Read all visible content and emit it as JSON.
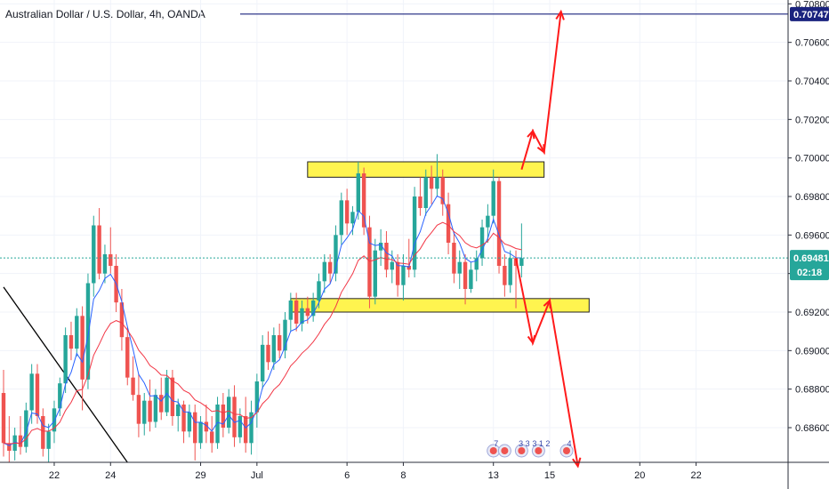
{
  "chart_data": {
    "type": "candlestick",
    "title": "Australian Dollar / U.S. Dollar, 4h, OANDA",
    "ylim": [
      0.6842,
      0.7082
    ],
    "y_ticks": [
      "0.70800",
      "0.70600",
      "0.70400",
      "0.70200",
      "0.70000",
      "0.69800",
      "0.69600",
      "0.69400",
      "0.69200",
      "0.69000",
      "0.68800",
      "0.68600"
    ],
    "x_ticks": [
      {
        "label": "22",
        "bar": 9
      },
      {
        "label": "24",
        "bar": 19
      },
      {
        "label": "29",
        "bar": 35
      },
      {
        "label": "Jul",
        "bar": 45
      },
      {
        "label": "6",
        "bar": 61
      },
      {
        "label": "8",
        "bar": 71
      },
      {
        "label": "13",
        "bar": 87
      },
      {
        "label": "15",
        "bar": 97
      },
      {
        "label": "20",
        "bar": 113
      },
      {
        "label": "22",
        "bar": 123
      }
    ],
    "candles": [
      [
        0.6878,
        0.689,
        0.6845,
        0.6852
      ],
      [
        0.6852,
        0.6866,
        0.6842,
        0.6848
      ],
      [
        0.6848,
        0.686,
        0.6843,
        0.6856
      ],
      [
        0.6856,
        0.6866,
        0.6846,
        0.685
      ],
      [
        0.685,
        0.6873,
        0.6847,
        0.6869
      ],
      [
        0.6869,
        0.6893,
        0.6862,
        0.6888
      ],
      [
        0.6888,
        0.6893,
        0.6862,
        0.6866
      ],
      [
        0.6866,
        0.687,
        0.6845,
        0.6849
      ],
      [
        0.6849,
        0.6862,
        0.6842,
        0.6858
      ],
      [
        0.6858,
        0.6874,
        0.6852,
        0.687
      ],
      [
        0.687,
        0.6886,
        0.6866,
        0.6883
      ],
      [
        0.6883,
        0.6912,
        0.6878,
        0.6908
      ],
      [
        0.6908,
        0.6915,
        0.6895,
        0.6901
      ],
      [
        0.6901,
        0.6922,
        0.6897,
        0.6918
      ],
      [
        0.6918,
        0.6923,
        0.6869,
        0.6885
      ],
      [
        0.6885,
        0.694,
        0.688,
        0.6935
      ],
      [
        0.6935,
        0.697,
        0.6928,
        0.6965
      ],
      [
        0.6965,
        0.6974,
        0.6937,
        0.694
      ],
      [
        0.694,
        0.6955,
        0.6935,
        0.695
      ],
      [
        0.695,
        0.6964,
        0.694,
        0.6944
      ],
      [
        0.6944,
        0.695,
        0.692,
        0.6925
      ],
      [
        0.6925,
        0.6932,
        0.69,
        0.6907
      ],
      [
        0.6907,
        0.6912,
        0.6882,
        0.6886
      ],
      [
        0.6886,
        0.6897,
        0.6874,
        0.6877
      ],
      [
        0.6877,
        0.6888,
        0.6855,
        0.6862
      ],
      [
        0.6862,
        0.6878,
        0.6856,
        0.6874
      ],
      [
        0.6874,
        0.6885,
        0.6858,
        0.6863
      ],
      [
        0.6863,
        0.688,
        0.686,
        0.6877
      ],
      [
        0.6877,
        0.6886,
        0.6864,
        0.6868
      ],
      [
        0.6868,
        0.689,
        0.6866,
        0.6886
      ],
      [
        0.6886,
        0.689,
        0.6861,
        0.6866
      ],
      [
        0.6866,
        0.6875,
        0.6858,
        0.6872
      ],
      [
        0.6872,
        0.6874,
        0.6852,
        0.6858
      ],
      [
        0.6858,
        0.6872,
        0.6855,
        0.6868
      ],
      [
        0.6868,
        0.6872,
        0.6843,
        0.6852
      ],
      [
        0.6852,
        0.6866,
        0.6849,
        0.6863
      ],
      [
        0.6863,
        0.6872,
        0.6852,
        0.6858
      ],
      [
        0.6858,
        0.6866,
        0.6847,
        0.6852
      ],
      [
        0.6852,
        0.6876,
        0.6849,
        0.6872
      ],
      [
        0.6872,
        0.6878,
        0.6855,
        0.686
      ],
      [
        0.686,
        0.688,
        0.6857,
        0.6876
      ],
      [
        0.6876,
        0.6882,
        0.685,
        0.6855
      ],
      [
        0.6855,
        0.687,
        0.6852,
        0.6866
      ],
      [
        0.6866,
        0.6876,
        0.6847,
        0.6852
      ],
      [
        0.6852,
        0.6874,
        0.6846,
        0.6868
      ],
      [
        0.6868,
        0.6888,
        0.686,
        0.6884
      ],
      [
        0.6884,
        0.6908,
        0.688,
        0.6903
      ],
      [
        0.6903,
        0.691,
        0.689,
        0.6894
      ],
      [
        0.6894,
        0.6912,
        0.689,
        0.6908
      ],
      [
        0.6908,
        0.6914,
        0.6896,
        0.69
      ],
      [
        0.69,
        0.692,
        0.6896,
        0.6916
      ],
      [
        0.6916,
        0.693,
        0.691,
        0.6926
      ],
      [
        0.6926,
        0.693,
        0.691,
        0.6914
      ],
      [
        0.6914,
        0.6926,
        0.691,
        0.6922
      ],
      [
        0.6922,
        0.6928,
        0.6914,
        0.6918
      ],
      [
        0.6918,
        0.693,
        0.6915,
        0.6926
      ],
      [
        0.6926,
        0.694,
        0.6922,
        0.6936
      ],
      [
        0.6936,
        0.695,
        0.693,
        0.6946
      ],
      [
        0.6946,
        0.695,
        0.6935,
        0.694
      ],
      [
        0.694,
        0.6965,
        0.6936,
        0.696
      ],
      [
        0.696,
        0.6982,
        0.6955,
        0.6978
      ],
      [
        0.6978,
        0.6984,
        0.696,
        0.6966
      ],
      [
        0.6966,
        0.6975,
        0.696,
        0.6972
      ],
      [
        0.6972,
        0.6998,
        0.6968,
        0.6992
      ],
      [
        0.6992,
        0.6995,
        0.696,
        0.6964
      ],
      [
        0.6964,
        0.697,
        0.6922,
        0.6928
      ],
      [
        0.6928,
        0.6958,
        0.6924,
        0.6952
      ],
      [
        0.6952,
        0.6963,
        0.6944,
        0.6956
      ],
      [
        0.6956,
        0.6962,
        0.6938,
        0.6942
      ],
      [
        0.6942,
        0.6952,
        0.6935,
        0.6946
      ],
      [
        0.6946,
        0.695,
        0.6928,
        0.6934
      ],
      [
        0.6934,
        0.695,
        0.6926,
        0.6944
      ],
      [
        0.6944,
        0.6958,
        0.6938,
        0.6942
      ],
      [
        0.6942,
        0.6985,
        0.6938,
        0.698
      ],
      [
        0.698,
        0.699,
        0.697,
        0.6974
      ],
      [
        0.6974,
        0.6994,
        0.697,
        0.699
      ],
      [
        0.699,
        0.6996,
        0.6976,
        0.6984
      ],
      [
        0.6984,
        0.7002,
        0.698,
        0.699
      ],
      [
        0.699,
        0.6994,
        0.697,
        0.6976
      ],
      [
        0.6976,
        0.6982,
        0.695,
        0.6956
      ],
      [
        0.6956,
        0.6962,
        0.6935,
        0.694
      ],
      [
        0.694,
        0.6952,
        0.6932,
        0.6946
      ],
      [
        0.6946,
        0.695,
        0.6924,
        0.6932
      ],
      [
        0.6932,
        0.6946,
        0.693,
        0.6942
      ],
      [
        0.6942,
        0.6952,
        0.6936,
        0.6948
      ],
      [
        0.6948,
        0.6968,
        0.6944,
        0.6964
      ],
      [
        0.6964,
        0.6976,
        0.6956,
        0.697
      ],
      [
        0.697,
        0.6994,
        0.6966,
        0.6988
      ],
      [
        0.6988,
        0.699,
        0.694,
        0.6944
      ],
      [
        0.6944,
        0.695,
        0.6928,
        0.6934
      ],
      [
        0.6934,
        0.6952,
        0.693,
        0.6948
      ],
      [
        0.6948,
        0.6952,
        0.6922,
        0.6944
      ],
      [
        0.6944,
        0.6966,
        0.6938,
        0.6948
      ]
    ],
    "zones": [
      {
        "name": "resistance",
        "y_low": 0.699,
        "y_high": 0.6998,
        "bar_from": 54,
        "bar_to": 96
      },
      {
        "name": "support",
        "y_low": 0.692,
        "y_high": 0.6927,
        "bar_from": 51,
        "bar_to": 104
      }
    ],
    "hline": {
      "value": 0.70747,
      "bar_from": 70,
      "color": "#1a237e"
    },
    "current_price": {
      "value": 0.69481,
      "label": "0.69481",
      "countdown": "02:18",
      "color": "#26a69a"
    },
    "target_label": "0.70747",
    "arrows_up": [
      [
        92,
        0.6994
      ],
      [
        94,
        0.7014
      ],
      [
        96,
        0.7003
      ],
      [
        99,
        0.7076
      ]
    ],
    "arrows_down": [
      [
        91,
        0.6948
      ],
      [
        94,
        0.6904
      ],
      [
        97,
        0.6926
      ],
      [
        102,
        0.684
      ]
    ],
    "trendline": [
      [
        0,
        0.6933
      ],
      [
        22,
        0.6842
      ]
    ],
    "event_markers": [
      {
        "bar": 87,
        "label": "7"
      },
      {
        "bar": 89,
        "label": ""
      },
      {
        "bar": 92,
        "label": "3 3"
      },
      {
        "bar": 95,
        "label": "3 1 2"
      },
      {
        "bar": 100,
        "label": "4"
      }
    ],
    "colors": {
      "up": "#26a69a",
      "down": "#ef5350",
      "ma_fast": "#2962ff",
      "ma_slow": "#f23645",
      "zone": "#fff44f",
      "arrow": "#ff1a1a",
      "trend": "#000000",
      "grid": "#f0f3fa"
    }
  }
}
